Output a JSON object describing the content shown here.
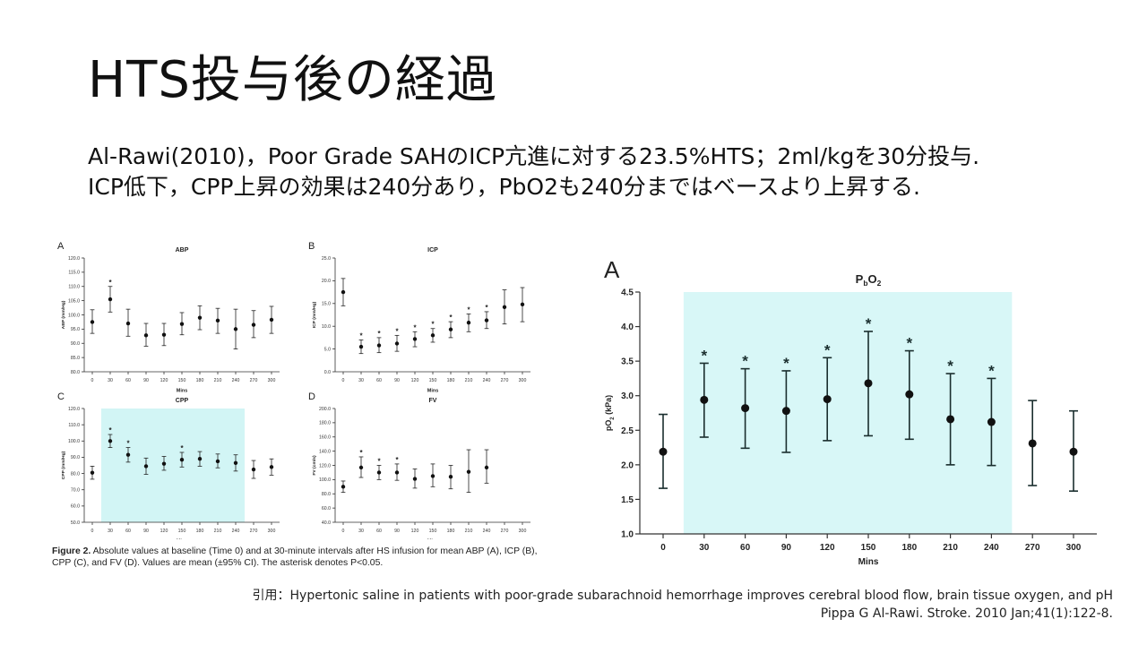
{
  "slide": {
    "title": "HTS投与後の経過",
    "body_lines": [
      "Al-Rawi(2010)，Poor Grade SAHのICP亢進に対する23.5%HTS；2ml/kgを30分投与.",
      "ICP低下，CPP上昇の効果は240分あり，PbO2も240分まではベースより上昇する."
    ],
    "caption_bold": "Figure 2.",
    "caption_text": " Absolute values at baseline (Time 0) and at 30-minute intervals after HS infusion for mean ABP (A), ICP (B), CPP (C), and FV (D). Values are mean (±95% CI). The asterisk denotes P<0.05.",
    "citation_line1": "引用：Hypertonic saline in patients with poor-grade subarachnoid hemorrhage improves cerebral blood flow, brain tissue oxygen, and pH",
    "citation_line2": "Pippa G Al-Rawi. Stroke. 2010 Jan;41(1):122-8."
  },
  "chart_data": [
    {
      "id": "abp",
      "panel": "A",
      "type": "scatter",
      "title": "ABP",
      "xlabel": "Mins",
      "ylabel": "ABP (mm/Hg)",
      "x": [
        0,
        30,
        60,
        90,
        120,
        150,
        180,
        210,
        240,
        270,
        300
      ],
      "y": [
        97.5,
        105.5,
        97,
        92.8,
        93,
        96.8,
        99,
        98,
        95,
        96.5,
        98.3
      ],
      "lower": [
        93.5,
        101,
        92.5,
        89,
        89.2,
        93,
        94.8,
        93.5,
        88,
        92,
        93.5
      ],
      "upper": [
        101.8,
        110,
        102,
        97,
        97,
        100.8,
        103.2,
        102.3,
        102,
        101.5,
        103
      ],
      "significant": [
        false,
        true,
        false,
        false,
        false,
        false,
        false,
        false,
        false,
        false,
        false
      ],
      "ylim": [
        80,
        120
      ],
      "yticks": [
        80,
        85,
        90,
        95,
        100,
        105,
        110,
        115,
        120
      ],
      "ytick_labels": [
        "80.0",
        "85.0",
        "90.0",
        "95.0",
        "100.0",
        "105.0",
        "110.0",
        "115.0",
        "120.0"
      ],
      "xticks": [
        0,
        30,
        60,
        90,
        120,
        150,
        180,
        210,
        240,
        270,
        300
      ],
      "shaded": false
    },
    {
      "id": "icp",
      "panel": "B",
      "type": "scatter",
      "title": "ICP",
      "xlabel": "Mins",
      "ylabel": "ICP (mm/Hg)",
      "x": [
        0,
        30,
        60,
        90,
        120,
        150,
        180,
        210,
        240,
        270,
        300
      ],
      "y": [
        17.5,
        5.5,
        5.8,
        6.2,
        7.2,
        8,
        9.3,
        10.8,
        11.3,
        14.2,
        14.8
      ],
      "lower": [
        14.5,
        4,
        4.2,
        4.5,
        5.5,
        6.5,
        7.5,
        8.8,
        9.5,
        10.5,
        11
      ],
      "upper": [
        20.5,
        7,
        7.5,
        8,
        8.8,
        9.5,
        11,
        12.7,
        13.2,
        18,
        18.5
      ],
      "significant": [
        false,
        true,
        true,
        true,
        true,
        true,
        true,
        true,
        true,
        false,
        false
      ],
      "ylim": [
        0,
        25
      ],
      "yticks": [
        0,
        5,
        10,
        15,
        20,
        25
      ],
      "ytick_labels": [
        "0.0",
        "5.0",
        "10.0",
        "15.0",
        "20.0",
        "25.0"
      ],
      "xticks": [
        0,
        30,
        60,
        90,
        120,
        150,
        180,
        210,
        240,
        270,
        300
      ],
      "shaded": false
    },
    {
      "id": "cpp",
      "panel": "C",
      "type": "scatter",
      "title": "CPP",
      "xlabel": "Mins",
      "ylabel": "CPP (mm/Hg)",
      "x": [
        0,
        30,
        60,
        90,
        120,
        150,
        180,
        210,
        240,
        270,
        300
      ],
      "y": [
        80.5,
        100,
        91.5,
        84.5,
        86,
        88.5,
        89,
        87.5,
        86.5,
        82.5,
        84
      ],
      "lower": [
        76.5,
        96,
        87,
        79.5,
        82,
        84,
        84.5,
        83.5,
        81.5,
        77,
        79
      ],
      "upper": [
        84.5,
        104,
        96,
        89.5,
        90.5,
        93,
        93.5,
        92,
        91.5,
        88,
        89
      ],
      "significant": [
        false,
        true,
        true,
        false,
        false,
        true,
        false,
        false,
        false,
        false,
        false
      ],
      "ylim": [
        50,
        120
      ],
      "yticks": [
        50,
        60,
        70,
        80,
        90,
        100,
        110,
        120
      ],
      "ytick_labels": [
        "50.0",
        "60.0",
        "70.0",
        "80.0",
        "90.0",
        "100.0",
        "110.0",
        "120.0"
      ],
      "xticks": [
        0,
        30,
        60,
        90,
        120,
        150,
        180,
        210,
        240,
        270,
        300
      ],
      "shaded": true
    },
    {
      "id": "fv",
      "panel": "D",
      "type": "scatter",
      "title": "FV",
      "xlabel": "Mins",
      "ylabel": "FV (cm/s)",
      "x": [
        0,
        30,
        60,
        90,
        120,
        150,
        180,
        210,
        240
      ],
      "y": [
        90,
        117,
        110,
        110,
        101,
        105,
        104,
        111,
        117
      ],
      "lower": [
        82,
        103,
        100,
        99,
        88,
        90,
        87,
        82,
        95
      ],
      "upper": [
        98,
        132,
        120,
        122,
        115,
        122,
        120,
        142,
        142
      ],
      "significant": [
        false,
        true,
        true,
        true,
        false,
        false,
        false,
        false,
        false
      ],
      "ylim": [
        40,
        200
      ],
      "yticks": [
        40,
        60,
        80,
        100,
        120,
        140,
        160,
        180,
        200
      ],
      "ytick_labels": [
        "40.0",
        "60.0",
        "80.0",
        "100.0",
        "120.0",
        "140.0",
        "160.0",
        "180.0",
        "200.0"
      ],
      "xticks": [
        0,
        30,
        60,
        90,
        120,
        150,
        180,
        210,
        240,
        270,
        300
      ],
      "shaded": false
    },
    {
      "id": "pbo2",
      "panel": "A",
      "type": "scatter",
      "title_main": "P",
      "title_sub1": "b",
      "title_mid": "O",
      "title_sub2": "2",
      "xlabel": "Mins",
      "ylabel_main": "pO",
      "ylabel_sub": "2",
      "ylabel_unit": " (kPa)",
      "x": [
        0,
        30,
        60,
        90,
        120,
        150,
        180,
        210,
        240,
        270,
        300
      ],
      "y": [
        2.19,
        2.94,
        2.82,
        2.78,
        2.95,
        3.18,
        3.02,
        2.66,
        2.62,
        2.31,
        2.19
      ],
      "lower": [
        1.66,
        2.4,
        2.24,
        2.18,
        2.35,
        2.42,
        2.37,
        2.0,
        1.99,
        1.7,
        1.62
      ],
      "upper": [
        2.73,
        3.47,
        3.39,
        3.36,
        3.55,
        3.93,
        3.65,
        3.32,
        3.25,
        2.93,
        2.78
      ],
      "significant": [
        false,
        true,
        true,
        true,
        true,
        true,
        true,
        true,
        true,
        false,
        false
      ],
      "ylim": [
        1.0,
        4.5
      ],
      "yticks": [
        1.0,
        1.5,
        2.0,
        2.5,
        3.0,
        3.5,
        4.0,
        4.5
      ],
      "ytick_labels": [
        "1.0",
        "1.5",
        "2.0",
        "2.5",
        "3.0",
        "3.5",
        "4.0",
        "4.5"
      ],
      "xticks": [
        0,
        30,
        60,
        90,
        120,
        150,
        180,
        210,
        240,
        270,
        300
      ],
      "shaded": true
    }
  ]
}
